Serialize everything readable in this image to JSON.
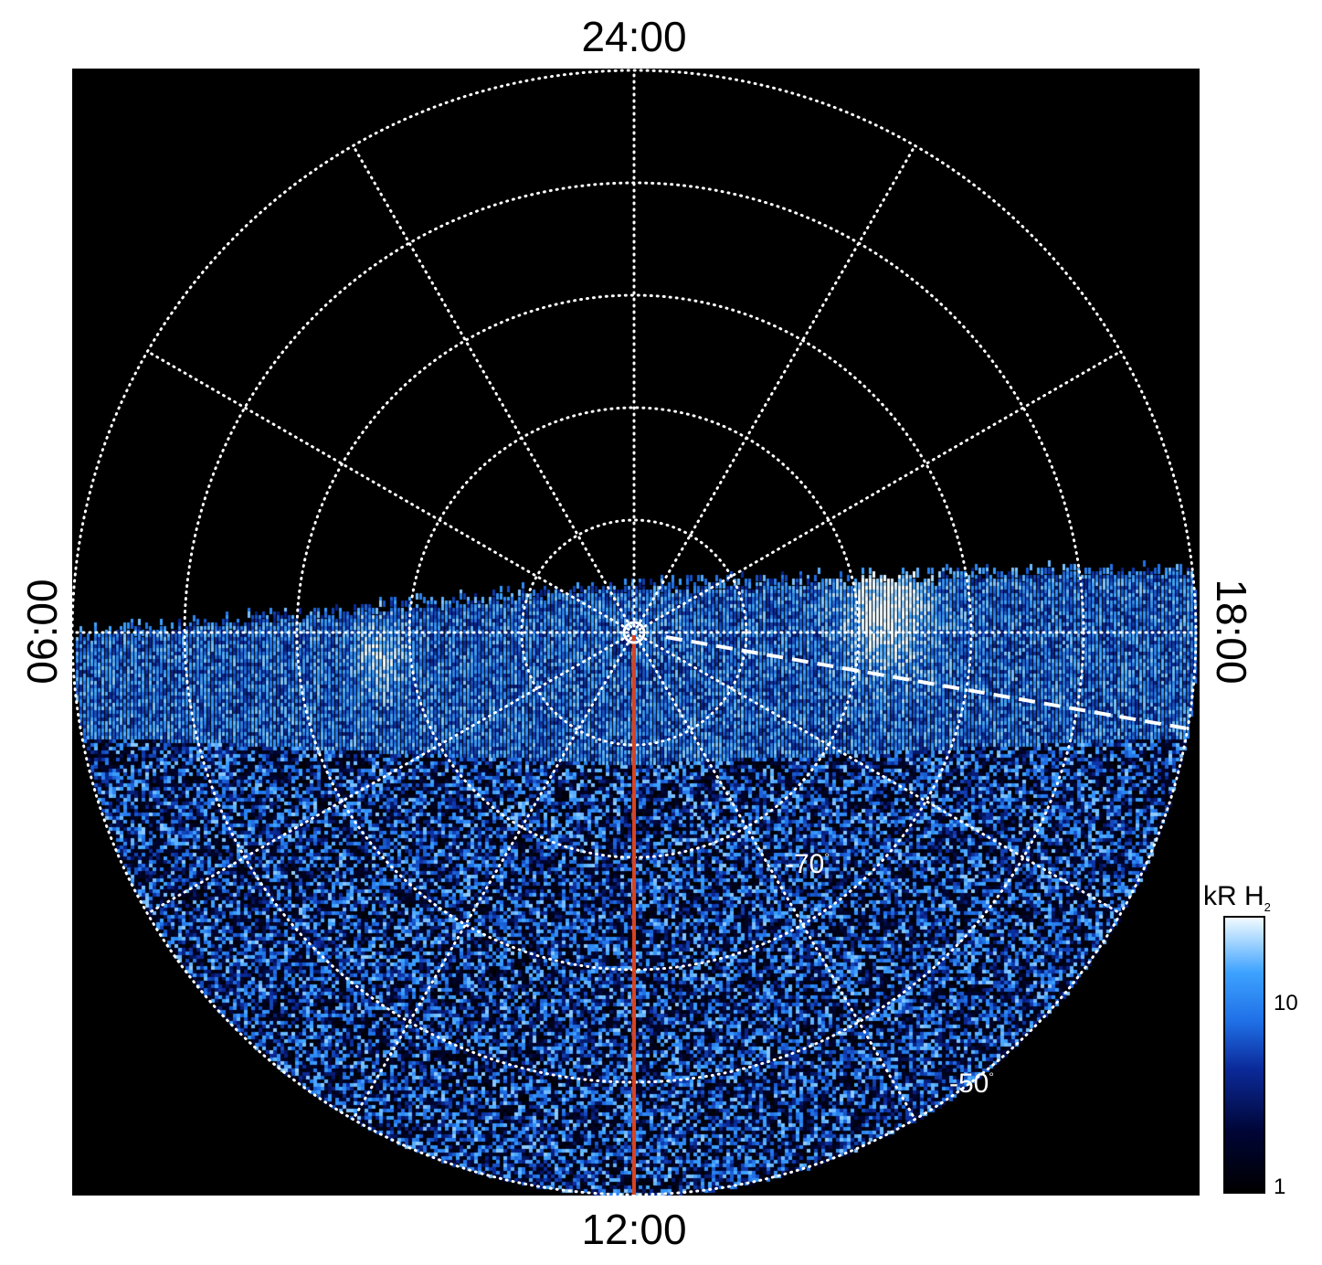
{
  "chart_data": {
    "type": "heatmap",
    "projection": "polar (south pole, magnetic local time)",
    "local_time_labels": {
      "top": "24:00",
      "bottom": "12:00",
      "left": "06:00",
      "right": "18:00"
    },
    "latitude_labels": [
      "-70",
      "-50"
    ],
    "latitude_unit_symbol": "°",
    "latitude_circles": [
      -80,
      -70,
      -60,
      -50,
      -40
    ],
    "meridian_spacing_hours": 2,
    "colorbar": {
      "title": "kR H",
      "title_subscript": "2",
      "scale": "log",
      "range": [
        1,
        30
      ],
      "ticks": [
        "1",
        "10"
      ],
      "colors": [
        "#000000",
        "#000536",
        "#0b2a9a",
        "#1f6fe6",
        "#3da2ff",
        "#a9d8ff",
        "#f2fbff"
      ]
    },
    "features": {
      "pole_marker": "circle",
      "noon_meridian_line_color": "#d9431e",
      "dashed_boundary_color": "#ffffff"
    },
    "colors": {
      "background": "#000000",
      "grid": "#ffffff"
    }
  }
}
